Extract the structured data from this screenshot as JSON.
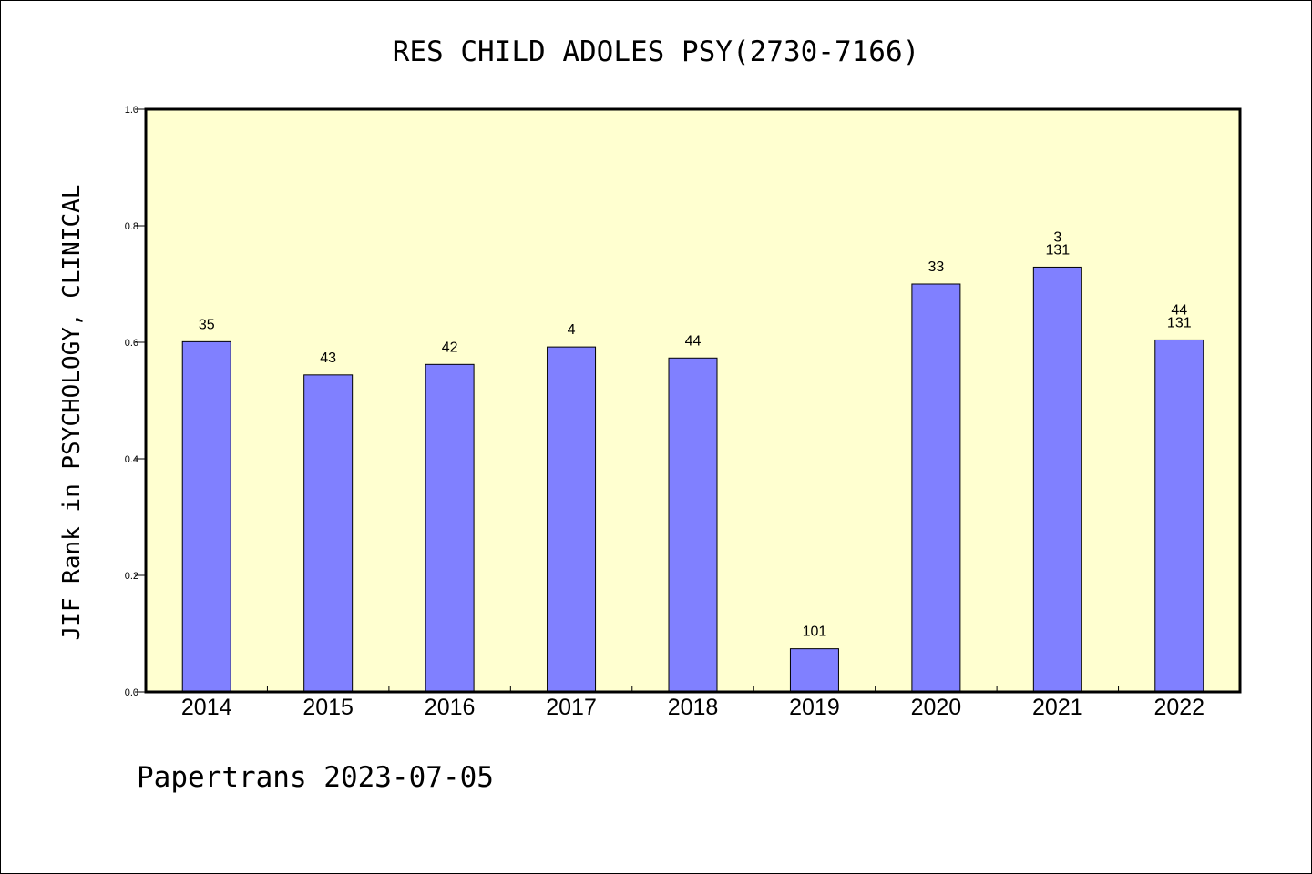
{
  "chart_data": {
    "type": "bar",
    "title": "RES CHILD ADOLES PSY(2730-7166)",
    "ylabel": "JIF Rank in PSYCHOLOGY, CLINICAL",
    "xlabel": "",
    "ylim": [
      0,
      1.0
    ],
    "yticks": [
      "0.0",
      "0.2",
      "0.4",
      "0.6",
      "0.8",
      "1.0"
    ],
    "grid": false,
    "categories": [
      "2014",
      "2015",
      "2016",
      "2017",
      "2018",
      "2019",
      "2020",
      "2021",
      "2022"
    ],
    "values": [
      0.601,
      0.544,
      0.562,
      0.592,
      0.573,
      0.074,
      0.7,
      0.729,
      0.604
    ],
    "labels": [
      [
        "35"
      ],
      [
        "43"
      ],
      [
        "42"
      ],
      [
        "4"
      ],
      [
        "44"
      ],
      [
        "101"
      ],
      [
        "33"
      ],
      [
        "3",
        "131"
      ],
      [
        "44",
        "131"
      ]
    ],
    "colors": {
      "bar": "#8080ff",
      "plot_bg": "#ffffd0",
      "axis": "#000000"
    }
  },
  "footer": "Papertrans 2023-07-05"
}
